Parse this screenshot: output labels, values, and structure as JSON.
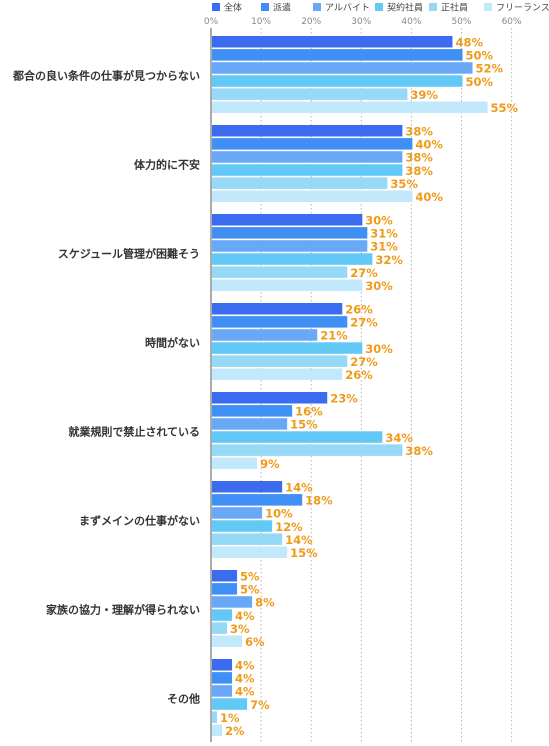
{
  "chart_data": {
    "type": "bar",
    "orientation": "horizontal",
    "title": "",
    "xlabel": "",
    "ylabel": "",
    "xlim": [
      0,
      60
    ],
    "ticks": [
      "0%",
      "10%",
      "20%",
      "30%",
      "40%",
      "50%",
      "60%"
    ],
    "tick_values": [
      0,
      10,
      20,
      30,
      40,
      50,
      60
    ],
    "value_suffix": "%",
    "grid": true,
    "legend_position": "top",
    "categories": [
      "都合の良い条件の仕事が見つからない",
      "体力的に不安",
      "スケジュール管理が困難そう",
      "時間がない",
      "就業規則で禁止されている",
      "まずメインの仕事がない",
      "家族の協力・理解が得られない",
      "その他"
    ],
    "series": [
      {
        "name": "全体",
        "color": "#3b6cf0",
        "values": [
          48,
          38,
          30,
          26,
          23,
          14,
          5,
          4
        ]
      },
      {
        "name": "派遣",
        "color": "#3f8ff5",
        "values": [
          50,
          40,
          31,
          27,
          16,
          18,
          5,
          4
        ]
      },
      {
        "name": "アルバイト",
        "color": "#69a8f7",
        "values": [
          52,
          38,
          31,
          21,
          15,
          10,
          8,
          4
        ]
      },
      {
        "name": "契約社員",
        "color": "#62c8f5",
        "values": [
          50,
          38,
          32,
          30,
          34,
          12,
          4,
          7
        ]
      },
      {
        "name": "正社員",
        "color": "#96d9f7",
        "values": [
          39,
          35,
          27,
          27,
          38,
          14,
          3,
          1
        ]
      },
      {
        "name": "フリーランス",
        "color": "#c2e8fb",
        "values": [
          55,
          40,
          30,
          26,
          9,
          15,
          6,
          2
        ]
      }
    ]
  }
}
